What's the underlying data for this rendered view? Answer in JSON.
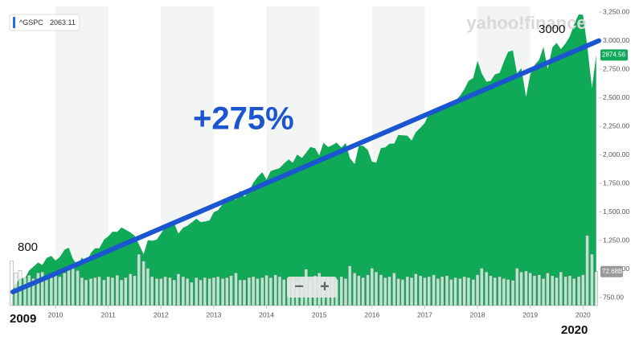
{
  "chart_data": {
    "type": "area",
    "tooltip": {
      "symbol": "^GSPC",
      "value": 2063.11
    },
    "watermark": "yahoo!finance",
    "x": [
      2009.17,
      2009.25,
      2009.33,
      2009.42,
      2009.5,
      2009.58,
      2009.67,
      2009.75,
      2009.83,
      2009.92,
      2010,
      2010.08,
      2010.17,
      2010.25,
      2010.33,
      2010.42,
      2010.5,
      2010.58,
      2010.67,
      2010.75,
      2010.83,
      2010.92,
      2011,
      2011.08,
      2011.17,
      2011.25,
      2011.33,
      2011.42,
      2011.5,
      2011.58,
      2011.67,
      2011.75,
      2011.83,
      2011.92,
      2012,
      2012.08,
      2012.17,
      2012.25,
      2012.33,
      2012.42,
      2012.5,
      2012.58,
      2012.67,
      2012.75,
      2012.83,
      2012.92,
      2013,
      2013.08,
      2013.17,
      2013.25,
      2013.33,
      2013.42,
      2013.5,
      2013.58,
      2013.67,
      2013.75,
      2013.83,
      2013.92,
      2014,
      2014.08,
      2014.17,
      2014.25,
      2014.33,
      2014.42,
      2014.5,
      2014.58,
      2014.67,
      2014.75,
      2014.83,
      2014.92,
      2015,
      2015.08,
      2015.17,
      2015.25,
      2015.33,
      2015.42,
      2015.5,
      2015.58,
      2015.67,
      2015.75,
      2015.83,
      2015.92,
      2016,
      2016.08,
      2016.17,
      2016.25,
      2016.33,
      2016.42,
      2016.5,
      2016.58,
      2016.67,
      2016.75,
      2016.83,
      2016.92,
      2017,
      2017.08,
      2017.17,
      2017.25,
      2017.33,
      2017.42,
      2017.5,
      2017.58,
      2017.67,
      2017.75,
      2017.83,
      2017.92,
      2018,
      2018.08,
      2018.17,
      2018.25,
      2018.33,
      2018.42,
      2018.5,
      2018.58,
      2018.67,
      2018.75,
      2018.83,
      2018.92,
      2019,
      2019.08,
      2019.17,
      2019.25,
      2019.33,
      2019.42,
      2019.5,
      2019.58,
      2019.67,
      2019.75,
      2019.83,
      2019.92,
      2020,
      2020.08,
      2020.17,
      2020.25
    ],
    "values": [
      798,
      873,
      919,
      919,
      987,
      1021,
      1057,
      1036,
      1096,
      1115,
      1074,
      1104,
      1169,
      1187,
      1089,
      1031,
      1102,
      1049,
      1141,
      1183,
      1181,
      1258,
      1286,
      1327,
      1326,
      1364,
      1345,
      1321,
      1292,
      1219,
      1131,
      1253,
      1247,
      1258,
      1312,
      1366,
      1408,
      1398,
      1310,
      1362,
      1379,
      1407,
      1441,
      1412,
      1416,
      1426,
      1498,
      1515,
      1569,
      1598,
      1631,
      1606,
      1686,
      1633,
      1682,
      1757,
      1806,
      1848,
      1783,
      1859,
      1872,
      1884,
      1924,
      1960,
      1931,
      2003,
      1972,
      2018,
      2068,
      2059,
      1995,
      2105,
      2068,
      2086,
      2107,
      2063,
      2104,
      1972,
      1920,
      2079,
      2080,
      2044,
      1940,
      1932,
      2060,
      2065,
      2097,
      2099,
      2174,
      2171,
      2168,
      2126,
      2199,
      2239,
      2279,
      2364,
      2363,
      2384,
      2412,
      2423,
      2470,
      2472,
      2519,
      2575,
      2648,
      2674,
      2824,
      2714,
      2641,
      2648,
      2705,
      2718,
      2816,
      2902,
      2914,
      2712,
      2760,
      2507,
      2704,
      2784,
      2834,
      2946,
      2752,
      2942,
      2980,
      2926,
      2977,
      3038,
      3141,
      3231,
      3226,
      2954,
      2585,
      2874.56
    ],
    "color": "#10a957",
    "volume": [
      95,
      70,
      75,
      60,
      65,
      58,
      70,
      72,
      62,
      60,
      68,
      62,
      70,
      80,
      88,
      75,
      60,
      55,
      58,
      60,
      62,
      55,
      62,
      60,
      65,
      55,
      60,
      68,
      64,
      110,
      95,
      80,
      62,
      58,
      58,
      62,
      60,
      55,
      68,
      62,
      58,
      50,
      60,
      55,
      60,
      58,
      60,
      62,
      58,
      60,
      64,
      70,
      55,
      55,
      60,
      62,
      58,
      60,
      65,
      60,
      66,
      62,
      56,
      55,
      58,
      52,
      60,
      78,
      55,
      64,
      70,
      62,
      60,
      58,
      56,
      62,
      58,
      85,
      70,
      64,
      60,
      66,
      80,
      72,
      66,
      60,
      62,
      70,
      58,
      56,
      62,
      60,
      68,
      64,
      60,
      62,
      66,
      58,
      62,
      64,
      56,
      60,
      58,
      62,
      60,
      56,
      66,
      80,
      72,
      64,
      60,
      62,
      58,
      56,
      54,
      80,
      72,
      74,
      70,
      64,
      66,
      58,
      70,
      64,
      60,
      72,
      62,
      64,
      58,
      62,
      66,
      150,
      110,
      72.68
    ],
    "current_price": 2874.56,
    "xlim": [
      2009.1,
      2020.3
    ],
    "xticks": [
      2010,
      2011,
      2012,
      2013,
      2014,
      2015,
      2016,
      2017,
      2018,
      2019,
      2020
    ],
    "ylim": [
      680,
      3300
    ],
    "yticks": [
      {
        "value": 750,
        "label": "750.00"
      },
      {
        "value": 1000,
        "label": "1,000.00"
      },
      {
        "value": 1250,
        "label": "1,250.00"
      },
      {
        "value": 1500,
        "label": "1,500.00"
      },
      {
        "value": 1750,
        "label": "1,750.00"
      },
      {
        "value": 2000,
        "label": "2,000.00"
      },
      {
        "value": 2250,
        "label": "2,250.00"
      },
      {
        "value": 2500,
        "label": "2,500.00"
      },
      {
        "value": 2750,
        "label": "2,750.00"
      },
      {
        "value": 3000,
        "label": "3,000.00"
      },
      {
        "value": 3250,
        "label": "3,250.00"
      }
    ],
    "y2lim": [
      0,
      640
    ],
    "y2ticks": [
      {
        "value": 72.68,
        "label": "72.68B"
      }
    ],
    "trend": {
      "values": [
        800,
        3000
      ],
      "color": "#1b55cf"
    },
    "annotations": [
      "+275%",
      "2009",
      "2020"
    ],
    "controls": [
      "−",
      "+"
    ]
  }
}
